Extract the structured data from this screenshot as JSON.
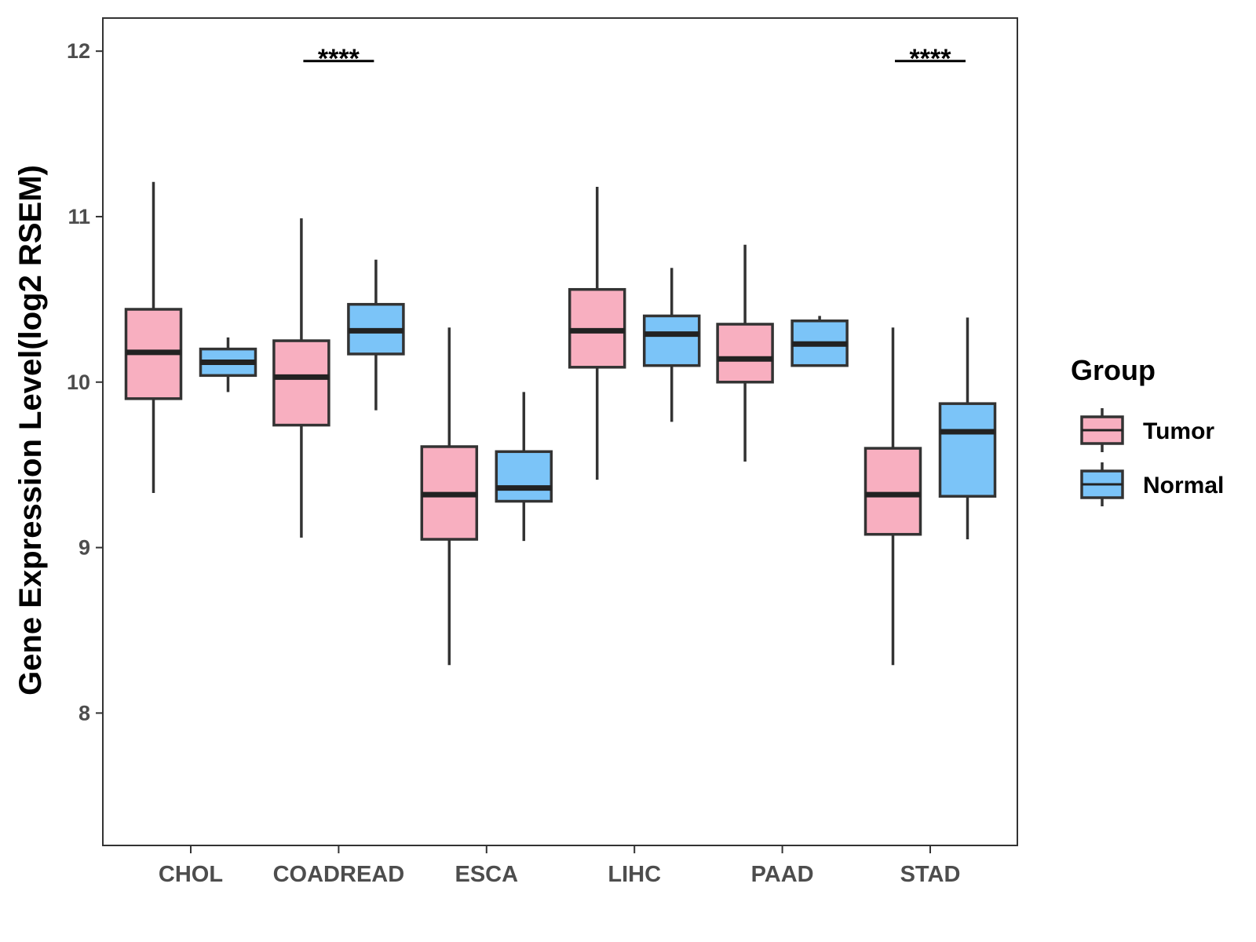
{
  "chart_data": {
    "type": "boxplot",
    "title": "",
    "xlabel": "",
    "ylabel": "Gene Expression Level(log2 RSEM)",
    "ylim": [
      7.2,
      12.2
    ],
    "yticks": [
      "8",
      "9",
      "10",
      "11",
      "12"
    ],
    "categories": [
      "CHOL",
      "COADREAD",
      "ESCA",
      "LIHC",
      "PAAD",
      "STAD"
    ],
    "legend": {
      "title": "Group",
      "position": "right",
      "entries": [
        {
          "name": "Tumor",
          "color": "#F8AFC0"
        },
        {
          "name": "Normal",
          "color": "#7BC4F8"
        }
      ]
    },
    "series": [
      {
        "name": "Tumor",
        "color": "#F8AFC0",
        "boxes": [
          {
            "min": 9.33,
            "q1": 9.9,
            "median": 10.18,
            "q3": 10.44,
            "max": 11.21
          },
          {
            "min": 9.06,
            "q1": 9.74,
            "median": 10.03,
            "q3": 10.25,
            "max": 10.99
          },
          {
            "min": 8.29,
            "q1": 9.05,
            "median": 9.32,
            "q3": 9.61,
            "max": 10.33
          },
          {
            "min": 9.41,
            "q1": 10.09,
            "median": 10.31,
            "q3": 10.56,
            "max": 11.18
          },
          {
            "min": 9.52,
            "q1": 10.0,
            "median": 10.14,
            "q3": 10.35,
            "max": 10.83
          },
          {
            "min": 8.29,
            "q1": 9.08,
            "median": 9.32,
            "q3": 9.6,
            "max": 10.33
          }
        ]
      },
      {
        "name": "Normal",
        "color": "#7BC4F8",
        "boxes": [
          {
            "min": 9.94,
            "q1": 10.04,
            "median": 10.12,
            "q3": 10.2,
            "max": 10.27
          },
          {
            "min": 9.83,
            "q1": 10.17,
            "median": 10.31,
            "q3": 10.47,
            "max": 10.74
          },
          {
            "min": 9.04,
            "q1": 9.28,
            "median": 9.36,
            "q3": 9.58,
            "max": 9.94
          },
          {
            "min": 9.76,
            "q1": 10.1,
            "median": 10.29,
            "q3": 10.4,
            "max": 10.69
          },
          {
            "min": 10.1,
            "q1": 10.1,
            "median": 10.23,
            "q3": 10.37,
            "max": 10.4
          },
          {
            "min": 9.05,
            "q1": 9.31,
            "median": 9.7,
            "q3": 9.87,
            "max": 10.39
          }
        ]
      }
    ],
    "annotations": [
      {
        "category": "COADREAD",
        "text": "****",
        "y": 11.94
      },
      {
        "category": "STAD",
        "text": "****",
        "y": 11.94
      }
    ]
  }
}
